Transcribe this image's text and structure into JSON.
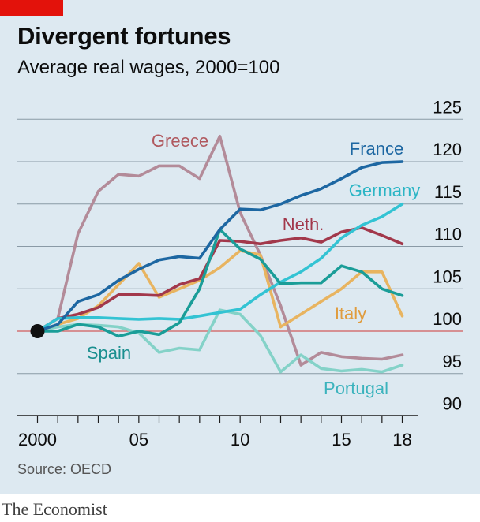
{
  "header": {
    "title": "Divergent fortunes",
    "subtitle": "Average real wages, 2000=100"
  },
  "footer": {
    "source": "Source: OECD",
    "brand": "The Economist"
  },
  "colors": {
    "background": "#dde9f1",
    "brand_red": "#e3120b",
    "grid": "#8a9aa6",
    "baseline": "#d25b5b"
  },
  "chart_data": {
    "type": "line",
    "title": "Divergent fortunes",
    "subtitle": "Average real wages, 2000=100",
    "x": [
      2000,
      2001,
      2002,
      2003,
      2004,
      2005,
      2006,
      2007,
      2008,
      2009,
      2010,
      2011,
      2012,
      2013,
      2014,
      2015,
      2016,
      2017,
      2018
    ],
    "x_ticks": [
      {
        "value": 2000,
        "label": "2000"
      },
      {
        "value": 2005,
        "label": "05"
      },
      {
        "value": 2010,
        "label": "10"
      },
      {
        "value": 2015,
        "label": "15"
      },
      {
        "value": 2018,
        "label": "18"
      }
    ],
    "y_ticks": [
      90,
      95,
      100,
      105,
      110,
      115,
      120,
      125
    ],
    "ylim": [
      90,
      125
    ],
    "y_axis_side": "right",
    "grid": true,
    "baseline": 100,
    "start_marker": {
      "x": 2000,
      "y": 100
    },
    "series": [
      {
        "name": "Greece",
        "color": "#b38b99",
        "label_color": "#b0595f",
        "values": [
          100,
          101.5,
          111.5,
          116.5,
          118.5,
          118.3,
          119.5,
          119.5,
          118,
          123,
          114,
          109,
          103,
          96,
          97.5,
          97,
          96.8,
          96.7,
          97.2
        ]
      },
      {
        "name": "Portugal",
        "color": "#84d2c8",
        "label_color": "#3bb3bd",
        "values": [
          100,
          100.5,
          100.8,
          100.7,
          100.5,
          99.8,
          97.5,
          98,
          97.8,
          102.5,
          102,
          99.5,
          95.2,
          97.2,
          95.6,
          95.3,
          95.5,
          95.2,
          96
        ]
      },
      {
        "name": "Italy",
        "color": "#e8b460",
        "label_color": "#e09c3e",
        "values": [
          100,
          100.8,
          101.5,
          103,
          105.5,
          108,
          104,
          105,
          106,
          107.5,
          109.5,
          109,
          100.5,
          102,
          103.5,
          105,
          107,
          107,
          101.8
        ]
      },
      {
        "name": "Neth.",
        "color": "#a2384b",
        "label_color": "#a2384b",
        "values": [
          100,
          101.5,
          102,
          102.8,
          104.3,
          104.3,
          104.2,
          105.5,
          106.2,
          110.7,
          110.6,
          110.3,
          110.7,
          111,
          110.5,
          111.7,
          112.2,
          111.3,
          110.3
        ]
      },
      {
        "name": "Germany",
        "color": "#33c3d3",
        "label_color": "#2bb5c5",
        "values": [
          100,
          101.5,
          101.6,
          101.6,
          101.5,
          101.4,
          101.5,
          101.4,
          101.8,
          102.2,
          102.6,
          104.3,
          105.8,
          107,
          108.6,
          111,
          112.5,
          113.5,
          115
        ]
      },
      {
        "name": "Spain",
        "color": "#1a9d98",
        "label_color": "#1a8f8f",
        "values": [
          100,
          100,
          100.8,
          100.5,
          99.4,
          100,
          99.6,
          101,
          105,
          112,
          109.7,
          108.5,
          105.6,
          105.7,
          105.7,
          107.7,
          107,
          105,
          104.2
        ]
      },
      {
        "name": "France",
        "color": "#1d67a2",
        "label_color": "#1d67a2",
        "values": [
          100,
          100.8,
          103.5,
          104.3,
          106,
          107.3,
          108.4,
          108.8,
          108.6,
          112,
          114.4,
          114.3,
          115,
          116,
          116.8,
          118,
          119.3,
          119.9,
          120
        ]
      }
    ]
  }
}
